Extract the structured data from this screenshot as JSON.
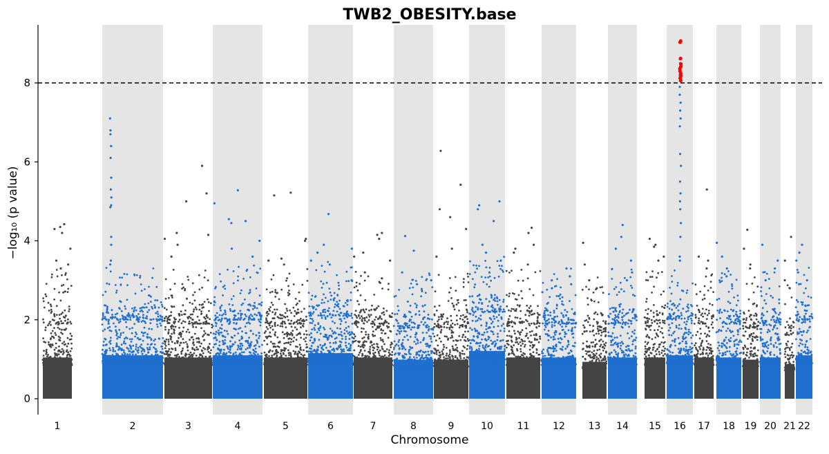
{
  "chart_data": {
    "type": "scatter",
    "subtype": "manhattan",
    "title": "TWB2_OBESITY.base",
    "xlabel": "Chromosome",
    "ylabel": "−log₁₀ (p value)",
    "ylim": [
      -0.4,
      9.4
    ],
    "yticks": [
      0,
      2,
      4,
      6,
      8
    ],
    "significance_threshold": 8,
    "threshold_style": "dashed",
    "alternate_band_shading": true,
    "colors": {
      "odd_chromosomes": "#444444",
      "even_chromosomes": "#1f6fcf",
      "significant": "#ff0000",
      "band": "#e5e5e5",
      "threshold": "#000000"
    },
    "chromosomes": [
      {
        "name": "1",
        "base_max": 1.9,
        "peaks": [
          4.42,
          4.35,
          4.3,
          4.2,
          3.8,
          3.5,
          3.4,
          3.3
        ]
      },
      {
        "name": "2",
        "base_max": 2.0,
        "peaks": [
          7.1,
          6.8,
          6.7,
          6.4,
          6.1,
          5.6,
          5.3,
          5.1,
          4.9,
          4.85,
          4.1,
          3.9,
          3.5,
          3.4
        ]
      },
      {
        "name": "3",
        "base_max": 1.9,
        "peaks": [
          5.9,
          5.2,
          5.0,
          4.2,
          4.15,
          4.05,
          3.9,
          3.6
        ]
      },
      {
        "name": "4",
        "base_max": 2.0,
        "peaks": [
          5.28,
          4.95,
          4.55,
          4.5,
          4.45,
          4.0,
          3.8,
          3.6
        ]
      },
      {
        "name": "5",
        "base_max": 1.9,
        "peaks": [
          5.22,
          5.15,
          4.05,
          4.0,
          3.55,
          3.5,
          3.4
        ]
      },
      {
        "name": "6",
        "base_max": 2.1,
        "peaks": [
          4.68,
          3.9,
          3.8,
          3.7,
          3.5,
          3.4,
          3.0
        ]
      },
      {
        "name": "7",
        "base_max": 1.9,
        "peaks": [
          4.2,
          4.15,
          4.05,
          3.7,
          3.6,
          3.5,
          3.2
        ]
      },
      {
        "name": "8",
        "base_max": 1.8,
        "peaks": [
          4.12,
          3.75,
          3.2,
          3.0,
          2.9
        ]
      },
      {
        "name": "9",
        "base_max": 1.8,
        "peaks": [
          6.28,
          5.42,
          4.8,
          4.6,
          4.3,
          3.8,
          3.6
        ]
      },
      {
        "name": "10",
        "base_max": 2.2,
        "peaks": [
          5.0,
          4.9,
          4.8,
          4.5,
          3.9,
          3.7,
          3.5,
          3.2
        ]
      },
      {
        "name": "11",
        "base_max": 1.9,
        "peaks": [
          4.33,
          4.2,
          3.9,
          3.8,
          3.7,
          3.4
        ]
      },
      {
        "name": "12",
        "base_max": 1.9,
        "peaks": [
          3.3,
          3.1,
          3.0,
          2.9,
          2.8,
          2.7,
          2.6
        ]
      },
      {
        "name": "13",
        "base_max": 1.7,
        "peaks": [
          3.95,
          3.4,
          3.0,
          2.8
        ]
      },
      {
        "name": "14",
        "base_max": 1.9,
        "peaks": [
          4.4,
          4.1,
          3.8,
          3.5,
          3.2,
          3.0
        ]
      },
      {
        "name": "15",
        "base_max": 1.9,
        "peaks": [
          4.05,
          3.9,
          3.85,
          3.6,
          3.5
        ]
      },
      {
        "name": "16",
        "base_max": 2.0,
        "peaks": [
          8.6,
          8.5,
          8.45,
          8.4,
          8.35,
          8.3,
          8.25,
          8.2,
          8.15,
          8.1,
          8.05,
          7.9,
          7.7,
          7.5,
          7.3,
          7.1,
          6.9,
          6.2,
          5.9,
          5.5,
          5.2,
          5.0,
          4.8,
          4.45,
          4.1,
          3.6,
          3.5
        ],
        "significant_peaks": [
          9.06,
          9.03,
          8.62,
          8.48,
          8.42,
          8.36,
          8.3,
          8.24,
          8.18,
          8.12,
          8.06
        ]
      },
      {
        "name": "17",
        "base_max": 1.9,
        "peaks": [
          5.3,
          3.6,
          3.5,
          3.3
        ]
      },
      {
        "name": "18",
        "base_max": 1.9,
        "peaks": [
          3.95,
          3.6,
          3.3,
          3.1
        ]
      },
      {
        "name": "19",
        "base_max": 1.8,
        "peaks": [
          4.28,
          3.8,
          3.4,
          3.3
        ]
      },
      {
        "name": "20",
        "base_max": 1.9,
        "peaks": [
          3.9,
          3.5,
          3.3,
          3.0
        ]
      },
      {
        "name": "21",
        "base_max": 1.6,
        "peaks": [
          4.1,
          3.5,
          3.0,
          2.8
        ]
      },
      {
        "name": "22",
        "base_max": 2.0,
        "peaks": [
          3.9,
          3.7,
          3.5,
          3.2,
          3.0,
          2.9
        ]
      }
    ]
  }
}
